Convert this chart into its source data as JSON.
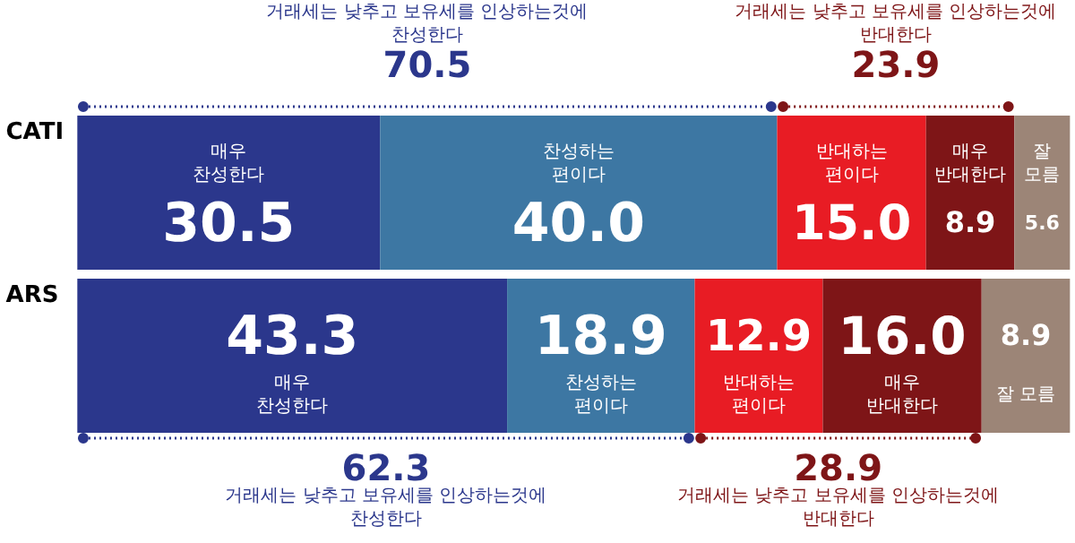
{
  "chart_data": {
    "type": "bar",
    "orientation": "horizontal",
    "stacked": true,
    "categories": [
      "CATI",
      "ARS"
    ],
    "series": [
      {
        "name": "매우 찬성한다",
        "color": "#2b378c",
        "values": [
          30.5,
          43.3
        ],
        "value_labels": [
          "30.5",
          "43.3"
        ]
      },
      {
        "name": "찬성하는 편이다",
        "color": "#3d77a3",
        "values": [
          40.0,
          18.9
        ],
        "value_labels": [
          "40.0",
          "18.9"
        ]
      },
      {
        "name": "반대하는 편이다",
        "color": "#e81c24",
        "values": [
          15.0,
          12.9
        ],
        "value_labels": [
          "15.0",
          "12.9"
        ]
      },
      {
        "name": "매우 반대한다",
        "color": "#7e1517",
        "values": [
          8.9,
          16.0
        ],
        "value_labels": [
          "8.9",
          "16.0"
        ]
      },
      {
        "name": "잘 모름",
        "color": "#9c8577",
        "values": [
          5.6,
          8.9
        ],
        "value_labels": [
          "5.6",
          "8.9"
        ]
      }
    ],
    "annotations": [
      "거래세는 낮추고 보유세를 인상하는것에 찬성한다",
      "70.5",
      "거래세는 낮추고 보유세를 인상하는것에 반대한다",
      "23.9",
      "거래세는 낮추고 보유세를 인상하는것에 찬성한다",
      "62.3",
      "거래세는 낮추고 보유세를 인상하는것에 반대한다",
      "28.9"
    ]
  }
}
